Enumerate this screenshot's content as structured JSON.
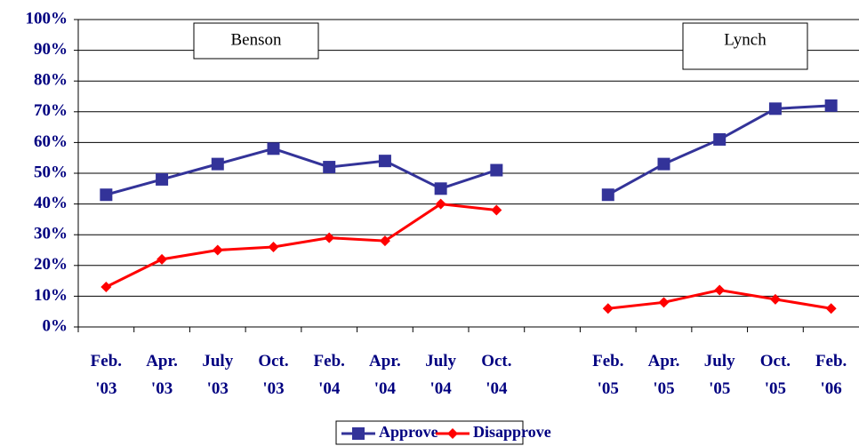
{
  "chart_data": {
    "type": "line",
    "categories": [
      "Feb. '03",
      "Apr. '03",
      "July '03",
      "Oct. '03",
      "Feb. '04",
      "Apr. '04",
      "July '04",
      "Oct. '04",
      null,
      "Feb. '05",
      "Apr. '05",
      "July '05",
      "Oct. '05",
      "Feb. '06"
    ],
    "series": [
      {
        "name": "Approve",
        "color": "#333399",
        "marker": "square",
        "values": [
          43,
          48,
          53,
          58,
          52,
          54,
          45,
          51,
          null,
          43,
          53,
          61,
          71,
          72
        ]
      },
      {
        "name": "Disapprove",
        "color": "#ff0000",
        "marker": "diamond",
        "values": [
          13,
          22,
          25,
          26,
          29,
          28,
          40,
          38,
          null,
          6,
          8,
          12,
          9,
          6
        ]
      }
    ],
    "ylim": [
      0,
      100
    ],
    "yticks": [
      {
        "value": 0,
        "label": "0%"
      },
      {
        "value": 10,
        "label": "10%"
      },
      {
        "value": 20,
        "label": "20%"
      },
      {
        "value": 30,
        "label": "30%"
      },
      {
        "value": 40,
        "label": "40%"
      },
      {
        "value": 50,
        "label": "50%"
      },
      {
        "value": 60,
        "label": "60%"
      },
      {
        "value": 70,
        "label": "70%"
      },
      {
        "value": 80,
        "label": "80%"
      },
      {
        "value": 90,
        "label": "90%"
      },
      {
        "value": 100,
        "label": "100%"
      }
    ],
    "grid": true,
    "annotations": [
      "Benson",
      "Lynch"
    ],
    "legend": "bottom"
  }
}
